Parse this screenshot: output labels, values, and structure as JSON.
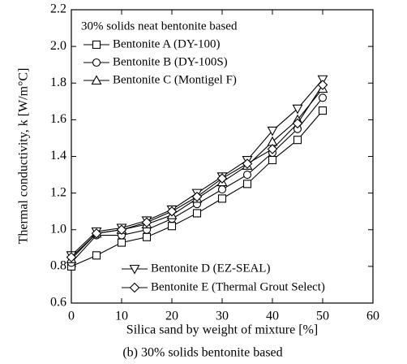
{
  "chart_data": {
    "type": "line",
    "legend_title": "30% solids neat bentonite based",
    "xlabel": "Silica sand by weight of mixture [%]",
    "ylabel": "Thermal conductivity, k [W/m°C]",
    "caption": "(b) 30% solids bentonite based",
    "x": [
      0,
      5,
      10,
      15,
      20,
      25,
      30,
      35,
      40,
      45,
      50
    ],
    "series": [
      {
        "name": "Bentonite A (DY-100)",
        "color": "#000000",
        "marker": "square",
        "values": [
          0.8,
          0.86,
          0.93,
          0.96,
          1.02,
          1.09,
          1.17,
          1.25,
          1.38,
          1.49,
          1.65
        ]
      },
      {
        "name": "Bentonite B (DY-100S)",
        "color": "#000000",
        "marker": "circle",
        "values": [
          0.82,
          0.97,
          0.97,
          1.0,
          1.06,
          1.14,
          1.22,
          1.3,
          1.42,
          1.55,
          1.72
        ]
      },
      {
        "name": "Bentonite C (Montigel F)",
        "color": "#000000",
        "marker": "triangle",
        "values": [
          0.84,
          0.98,
          1.0,
          1.03,
          1.08,
          1.17,
          1.26,
          1.35,
          1.48,
          1.6,
          1.77
        ]
      },
      {
        "name": "Bentonite D (EZ-SEAL)",
        "color": "#000000",
        "marker": "triangle-down",
        "values": [
          0.86,
          0.99,
          1.01,
          1.05,
          1.11,
          1.2,
          1.29,
          1.38,
          1.54,
          1.66,
          1.82
        ]
      },
      {
        "name": "Bentonite E (Thermal Grout Select)",
        "color": "#000000",
        "marker": "diamond",
        "values": [
          0.85,
          0.98,
          1.0,
          1.04,
          1.1,
          1.18,
          1.28,
          1.36,
          1.44,
          1.58,
          1.79
        ]
      }
    ],
    "xlim": [
      0,
      60
    ],
    "xticks": [
      0,
      10,
      20,
      30,
      40,
      50,
      60
    ],
    "ylim": [
      0.6,
      2.2
    ],
    "yticks": [
      0.6,
      0.8,
      {
        "value": 1,
        "label": "1.0"
      },
      1.2,
      1.4,
      1.6,
      1.8,
      {
        "value": 2,
        "label": "2.0"
      },
      2.2
    ]
  }
}
